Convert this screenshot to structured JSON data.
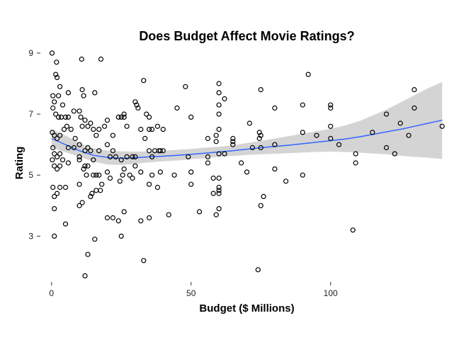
{
  "chart_data": {
    "type": "scatter",
    "title": "Does Budget Affect Movie Ratings?",
    "xlabel": "Budget ($ Millions)",
    "ylabel": "Rating",
    "xlim": [
      -4,
      144
    ],
    "ylim": [
      1.5,
      9.3
    ],
    "x_ticks": [
      0,
      50,
      100
    ],
    "y_ticks": [
      3,
      5,
      7,
      9
    ],
    "grid": false,
    "legend": "none",
    "colors": {
      "points": "#000000",
      "smooth_line": "#3366ff",
      "confidence_band": "#cccccc"
    },
    "series": [
      {
        "kind": "points",
        "points": [
          [
            0.2,
            9.0
          ],
          [
            1.8,
            8.7
          ],
          [
            1.5,
            8.3
          ],
          [
            2.0,
            8.2
          ],
          [
            10.8,
            8.8
          ],
          [
            17.7,
            8.8
          ],
          [
            0.5,
            7.6
          ],
          [
            1.0,
            7.4
          ],
          [
            2.5,
            7.6
          ],
          [
            3.0,
            7.9
          ],
          [
            4.0,
            7.3
          ],
          [
            6.0,
            7.7
          ],
          [
            11.0,
            7.8
          ],
          [
            11.5,
            7.6
          ],
          [
            15.5,
            7.7
          ],
          [
            0.5,
            7.2
          ],
          [
            1.5,
            7.0
          ],
          [
            2.5,
            6.9
          ],
          [
            3.5,
            6.9
          ],
          [
            5.0,
            6.9
          ],
          [
            6.0,
            6.9
          ],
          [
            8.0,
            7.1
          ],
          [
            10.0,
            7.1
          ],
          [
            10.5,
            6.9
          ],
          [
            12.0,
            6.8
          ],
          [
            13.0,
            6.6
          ],
          [
            0.3,
            6.4
          ],
          [
            1.0,
            6.3
          ],
          [
            2.0,
            6.2
          ],
          [
            3.0,
            6.3
          ],
          [
            4.5,
            6.5
          ],
          [
            5.5,
            6.6
          ],
          [
            7.0,
            6.5
          ],
          [
            8.5,
            6.2
          ],
          [
            10.0,
            6.0
          ],
          [
            11.0,
            6.6
          ],
          [
            14.0,
            6.7
          ],
          [
            15.0,
            6.5
          ],
          [
            16.0,
            6.3
          ],
          [
            17.0,
            6.5
          ],
          [
            19.0,
            6.6
          ],
          [
            0.5,
            5.9
          ],
          [
            1.0,
            5.7
          ],
          [
            2.0,
            5.6
          ],
          [
            3.0,
            5.7
          ],
          [
            4.0,
            5.5
          ],
          [
            6.0,
            5.9
          ],
          [
            8.0,
            5.9
          ],
          [
            10.0,
            5.6
          ],
          [
            12.0,
            5.8
          ],
          [
            13.0,
            5.9
          ],
          [
            14.0,
            5.8
          ],
          [
            15.0,
            5.5
          ],
          [
            17.0,
            5.8
          ],
          [
            0.3,
            5.5
          ],
          [
            1.0,
            5.3
          ],
          [
            2.0,
            5.2
          ],
          [
            3.0,
            5.3
          ],
          [
            6.0,
            5.4
          ],
          [
            10.0,
            5.5
          ],
          [
            12.0,
            5.3
          ],
          [
            13.0,
            5.3
          ],
          [
            15.0,
            5.0
          ],
          [
            0.5,
            4.6
          ],
          [
            1.0,
            4.3
          ],
          [
            2.0,
            4.4
          ],
          [
            3.0,
            4.6
          ],
          [
            5.0,
            4.6
          ],
          [
            10.0,
            4.7
          ],
          [
            11.5,
            5.2
          ],
          [
            12.5,
            5.0
          ],
          [
            14.0,
            4.3
          ],
          [
            14.5,
            4.4
          ],
          [
            16.0,
            4.5
          ],
          [
            17.5,
            4.5
          ],
          [
            1.0,
            3.9
          ],
          [
            5.0,
            3.4
          ],
          [
            10.0,
            4.0
          ],
          [
            11.0,
            4.1
          ],
          [
            16.0,
            5.0
          ],
          [
            17.0,
            5.0
          ],
          [
            18.0,
            4.7
          ],
          [
            1.0,
            3.0
          ],
          [
            13.0,
            2.4
          ],
          [
            15.5,
            2.9
          ],
          [
            12.0,
            1.7
          ],
          [
            20.0,
            6.8
          ],
          [
            22.0,
            6.3
          ],
          [
            20.0,
            6.0
          ],
          [
            21.0,
            5.6
          ],
          [
            22.0,
            5.8
          ],
          [
            23.0,
            5.6
          ],
          [
            24.0,
            6.9
          ],
          [
            25.0,
            6.9
          ],
          [
            26.0,
            6.9
          ],
          [
            27.0,
            6.6
          ],
          [
            26.0,
            7.0
          ],
          [
            20.0,
            5.1
          ],
          [
            21.0,
            4.9
          ],
          [
            22.0,
            3.6
          ],
          [
            24.0,
            3.5
          ],
          [
            26.0,
            3.8
          ],
          [
            25.0,
            3.0
          ],
          [
            20.0,
            3.6
          ],
          [
            25.5,
            5.0
          ],
          [
            26.0,
            5.2
          ],
          [
            28.0,
            5.0
          ],
          [
            29.0,
            5.6
          ],
          [
            30.0,
            5.6
          ],
          [
            30.5,
            7.3
          ],
          [
            30.0,
            7.4
          ],
          [
            31.0,
            7.2
          ],
          [
            32.0,
            6.5
          ],
          [
            33.0,
            8.1
          ],
          [
            34.0,
            7.0
          ],
          [
            35.0,
            6.9
          ],
          [
            29.0,
            4.9
          ],
          [
            30.0,
            5.3
          ],
          [
            32.0,
            5.1
          ],
          [
            33.5,
            6.2
          ],
          [
            35.0,
            6.5
          ],
          [
            36.0,
            6.5
          ],
          [
            36.0,
            5.6
          ],
          [
            37.0,
            5.8
          ],
          [
            38.0,
            6.6
          ],
          [
            38.5,
            5.8
          ],
          [
            39.0,
            5.8
          ],
          [
            40.0,
            5.8
          ],
          [
            40.0,
            6.5
          ],
          [
            35.0,
            5.8
          ],
          [
            25.0,
            5.5
          ],
          [
            24.5,
            4.8
          ],
          [
            27.0,
            5.6
          ],
          [
            32.0,
            3.5
          ],
          [
            33.0,
            2.2
          ],
          [
            35.0,
            3.6
          ],
          [
            35.0,
            4.7
          ],
          [
            36.0,
            5.0
          ],
          [
            38.0,
            4.6
          ],
          [
            39.0,
            5.1
          ],
          [
            42.0,
            3.7
          ],
          [
            45.0,
            7.2
          ],
          [
            48.0,
            7.9
          ],
          [
            49.0,
            5.6
          ],
          [
            50.0,
            6.9
          ],
          [
            50.0,
            5.1
          ],
          [
            50.0,
            4.7
          ],
          [
            44.0,
            5.0
          ],
          [
            53.0,
            3.8
          ],
          [
            56.0,
            6.2
          ],
          [
            56.0,
            5.6
          ],
          [
            56.0,
            5.4
          ],
          [
            58.0,
            4.4
          ],
          [
            58.0,
            4.9
          ],
          [
            59.0,
            6.1
          ],
          [
            59.0,
            6.3
          ],
          [
            59.0,
            3.7
          ],
          [
            60.0,
            4.6
          ],
          [
            60.0,
            4.4
          ],
          [
            60.0,
            4.5
          ],
          [
            60.0,
            3.9
          ],
          [
            60.0,
            4.9
          ],
          [
            60.0,
            5.7
          ],
          [
            60.0,
            6.5
          ],
          [
            60.0,
            7.0
          ],
          [
            60.0,
            7.3
          ],
          [
            60.0,
            7.7
          ],
          [
            60.0,
            8.0
          ],
          [
            62.0,
            7.5
          ],
          [
            62.0,
            5.7
          ],
          [
            65.0,
            6.1
          ],
          [
            65.0,
            6.2
          ],
          [
            65.0,
            6.0
          ],
          [
            68.0,
            5.4
          ],
          [
            70.0,
            5.1
          ],
          [
            71.0,
            6.7
          ],
          [
            72.0,
            5.9
          ],
          [
            74.0,
            1.9
          ],
          [
            74.5,
            6.4
          ],
          [
            74.5,
            6.2
          ],
          [
            75.0,
            5.9
          ],
          [
            75.0,
            4.0
          ],
          [
            75.0,
            7.8
          ],
          [
            76.0,
            4.3
          ],
          [
            75.0,
            6.3
          ],
          [
            80.0,
            7.2
          ],
          [
            80.0,
            5.2
          ],
          [
            80.0,
            6.0
          ],
          [
            84.0,
            4.8
          ],
          [
            90.0,
            7.3
          ],
          [
            90.0,
            6.4
          ],
          [
            90.0,
            5.0
          ],
          [
            92.0,
            8.3
          ],
          [
            95.0,
            6.3
          ],
          [
            100.0,
            7.2
          ],
          [
            100.0,
            7.3
          ],
          [
            100.0,
            6.6
          ],
          [
            100.0,
            6.2
          ],
          [
            103.0,
            6.0
          ],
          [
            108.0,
            3.2
          ],
          [
            109.0,
            5.7
          ],
          [
            109.0,
            5.4
          ],
          [
            115.0,
            6.4
          ],
          [
            120.0,
            7.0
          ],
          [
            120.0,
            5.9
          ],
          [
            123.0,
            5.7
          ],
          [
            125.0,
            6.7
          ],
          [
            128.0,
            6.3
          ],
          [
            130.0,
            7.8
          ],
          [
            130.0,
            7.2
          ],
          [
            140.0,
            6.6
          ]
        ]
      },
      {
        "kind": "smooth",
        "x": [
          0,
          5,
          10,
          15,
          20,
          25,
          30,
          35,
          40,
          45,
          50,
          55,
          60,
          65,
          70,
          75,
          80,
          85,
          90,
          95,
          100,
          105,
          110,
          115,
          120,
          125,
          130,
          135,
          140
        ],
        "y": [
          6.2,
          6.0,
          5.8,
          5.65,
          5.58,
          5.55,
          5.57,
          5.6,
          5.62,
          5.65,
          5.68,
          5.72,
          5.76,
          5.8,
          5.85,
          5.9,
          5.94,
          5.98,
          6.03,
          6.08,
          6.13,
          6.18,
          6.25,
          6.33,
          6.42,
          6.5,
          6.6,
          6.7,
          6.8
        ],
        "lower": [
          5.9,
          5.75,
          5.6,
          5.45,
          5.35,
          5.33,
          5.37,
          5.42,
          5.45,
          5.48,
          5.52,
          5.56,
          5.6,
          5.63,
          5.66,
          5.68,
          5.7,
          5.72,
          5.74,
          5.76,
          5.77,
          5.76,
          5.74,
          5.71,
          5.68,
          5.64,
          5.6,
          5.57,
          5.53
        ],
        "upper": [
          6.5,
          6.3,
          6.05,
          5.88,
          5.8,
          5.78,
          5.77,
          5.78,
          5.8,
          5.83,
          5.86,
          5.9,
          5.93,
          5.98,
          6.05,
          6.12,
          6.2,
          6.28,
          6.36,
          6.44,
          6.52,
          6.62,
          6.76,
          6.95,
          7.15,
          7.38,
          7.62,
          7.85,
          8.05
        ]
      }
    ]
  }
}
